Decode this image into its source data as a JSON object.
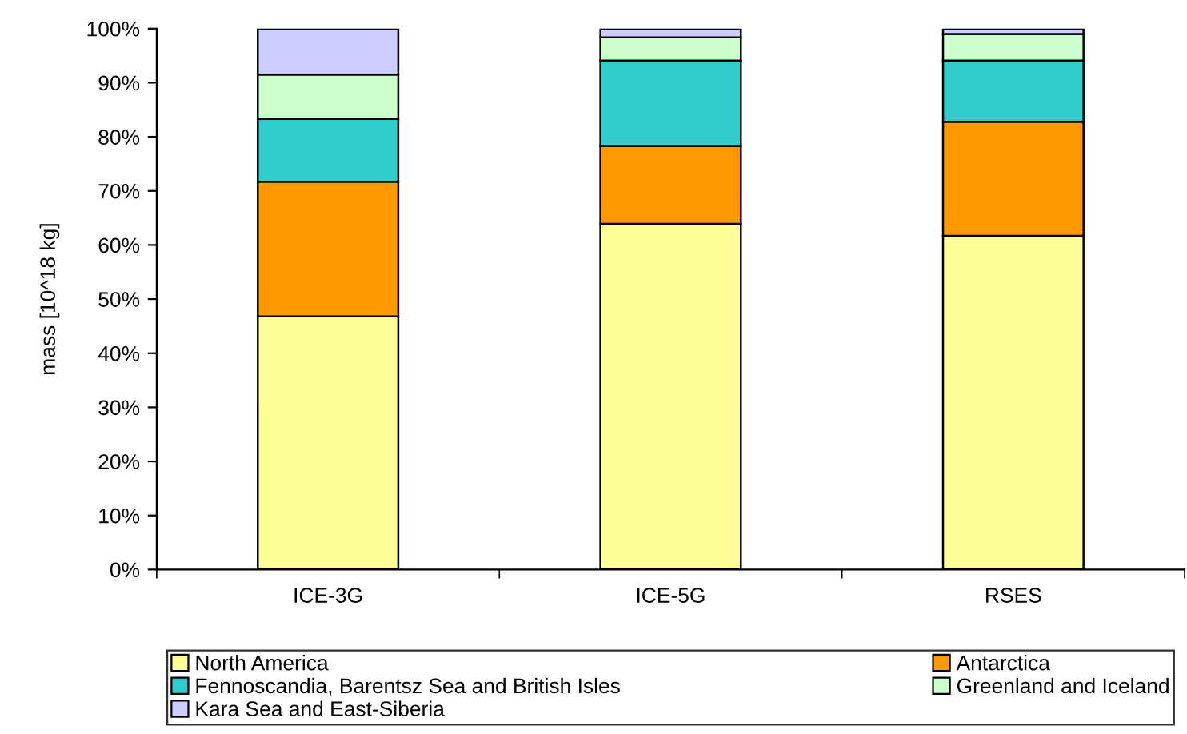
{
  "chart_data": {
    "type": "bar",
    "stacked": true,
    "ylabel": "mass [10^18 kg]",
    "categories": [
      "ICE-3G",
      "ICE-5G",
      "RSES"
    ],
    "series": [
      {
        "name": "North America",
        "color": "#ffff99",
        "values": [
          46.8,
          63.9,
          61.7
        ]
      },
      {
        "name": "Antarctica",
        "color": "#ff9900",
        "values": [
          24.9,
          14.4,
          21.1
        ]
      },
      {
        "name": "Fennoscandia, Barentsz Sea and British Isles",
        "color": "#33cccc",
        "values": [
          11.6,
          15.8,
          11.3
        ]
      },
      {
        "name": "Greenland and Iceland",
        "color": "#ccffcc",
        "values": [
          8.2,
          4.3,
          4.9
        ]
      },
      {
        "name": "Kara Sea and East-Siberia",
        "color": "#ccccff",
        "values": [
          8.5,
          1.6,
          1.0
        ]
      }
    ],
    "ylim": [
      0,
      100
    ],
    "yticks": [
      {
        "value": 0,
        "label": "0%"
      },
      {
        "value": 10,
        "label": "10%"
      },
      {
        "value": 20,
        "label": "20%"
      },
      {
        "value": 30,
        "label": "30%"
      },
      {
        "value": 40,
        "label": "40%"
      },
      {
        "value": 50,
        "label": "50%"
      },
      {
        "value": 60,
        "label": "60%"
      },
      {
        "value": 70,
        "label": "70%"
      },
      {
        "value": 80,
        "label": "80%"
      },
      {
        "value": 90,
        "label": "90%"
      },
      {
        "value": 100,
        "label": "100%"
      }
    ],
    "grid": false,
    "legend": "bottom"
  }
}
